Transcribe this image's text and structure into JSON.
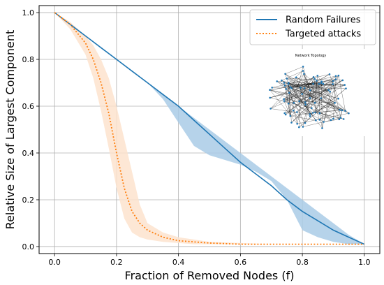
{
  "chart_data": {
    "type": "line",
    "xlabel": "Fraction of Removed Nodes (f)",
    "ylabel": "Relative Size of Largest Component",
    "xlim": [
      -0.05,
      1.05
    ],
    "ylim": [
      -0.03,
      1.03
    ],
    "xticks": [
      "0.0",
      "0.2",
      "0.4",
      "0.6",
      "0.8",
      "1.0"
    ],
    "yticks": [
      "0.0",
      "0.2",
      "0.4",
      "0.6",
      "0.8",
      "1.0"
    ],
    "grid": true,
    "legend_position": "top-right",
    "series": [
      {
        "name": "Random Failures",
        "style": "solid",
        "color": "#1f77b4",
        "band_color": "#a9cbe6",
        "x": [
          0.0,
          0.05,
          0.1,
          0.15,
          0.2,
          0.25,
          0.3,
          0.35,
          0.4,
          0.45,
          0.5,
          0.55,
          0.6,
          0.65,
          0.7,
          0.75,
          0.8,
          0.85,
          0.9,
          0.95,
          1.0
        ],
        "y": [
          1.0,
          0.95,
          0.9,
          0.85,
          0.8,
          0.75,
          0.7,
          0.65,
          0.6,
          0.54,
          0.48,
          0.42,
          0.36,
          0.31,
          0.26,
          0.2,
          0.15,
          0.11,
          0.07,
          0.04,
          0.01
        ],
        "upper": [
          1.0,
          0.95,
          0.9,
          0.85,
          0.8,
          0.75,
          0.7,
          0.65,
          0.6,
          0.55,
          0.5,
          0.45,
          0.4,
          0.35,
          0.3,
          0.25,
          0.2,
          0.15,
          0.1,
          0.05,
          0.01
        ],
        "lower": [
          1.0,
          0.95,
          0.9,
          0.85,
          0.8,
          0.75,
          0.7,
          0.63,
          0.53,
          0.43,
          0.39,
          0.37,
          0.35,
          0.32,
          0.28,
          0.2,
          0.07,
          0.04,
          0.02,
          0.01,
          0.01
        ]
      },
      {
        "name": "Targeted attacks",
        "style": "dotted",
        "color": "#ff7f0e",
        "band_color": "#fde3ce",
        "x": [
          0.0,
          0.05,
          0.1,
          0.125,
          0.15,
          0.175,
          0.2,
          0.225,
          0.25,
          0.275,
          0.3,
          0.35,
          0.4,
          0.45,
          0.5,
          0.6,
          0.7,
          0.8,
          0.9,
          1.0
        ],
        "y": [
          1.0,
          0.95,
          0.87,
          0.8,
          0.7,
          0.57,
          0.4,
          0.25,
          0.15,
          0.1,
          0.07,
          0.04,
          0.025,
          0.02,
          0.015,
          0.01,
          0.01,
          0.01,
          0.01,
          0.01
        ],
        "upper": [
          1.0,
          0.96,
          0.9,
          0.86,
          0.8,
          0.72,
          0.6,
          0.46,
          0.32,
          0.18,
          0.1,
          0.06,
          0.04,
          0.03,
          0.02,
          0.015,
          0.01,
          0.01,
          0.01,
          0.01
        ],
        "lower": [
          1.0,
          0.93,
          0.82,
          0.72,
          0.58,
          0.42,
          0.25,
          0.12,
          0.06,
          0.04,
          0.03,
          0.02,
          0.015,
          0.01,
          0.01,
          0.01,
          0.01,
          0.01,
          0.01,
          0.01
        ]
      }
    ],
    "inset": {
      "title": "Network Topology",
      "node_color": "#1f77b4",
      "edge_color": "#000000"
    }
  }
}
